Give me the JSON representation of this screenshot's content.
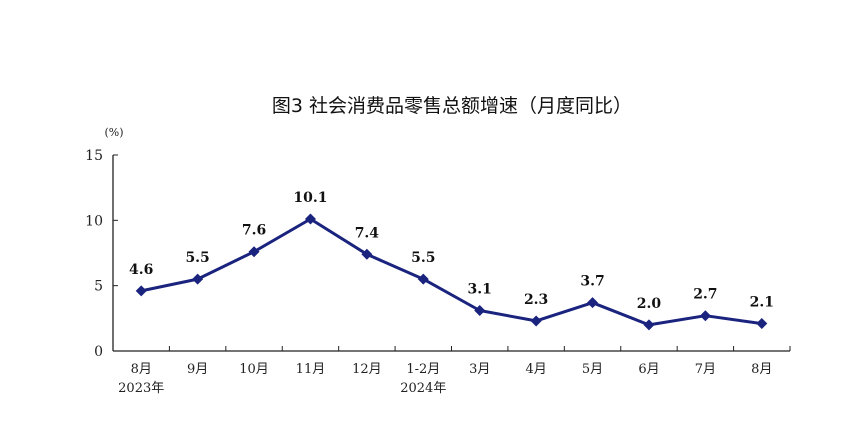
{
  "chart_data": {
    "type": "line",
    "title": "图3   社会消费品零售总额增速（月度同比）",
    "unit_label": "(%)",
    "categories": [
      "8月",
      "9月",
      "10月",
      "11月",
      "12月",
      "1-2月",
      "3月",
      "4月",
      "5月",
      "6月",
      "7月",
      "8月"
    ],
    "year_labels": [
      {
        "category_index": 0,
        "text": "2023年"
      },
      {
        "category_index": 5,
        "text": "2024年"
      }
    ],
    "values": [
      4.6,
      5.5,
      7.6,
      10.1,
      7.4,
      5.5,
      3.1,
      2.3,
      3.7,
      2.0,
      2.7,
      2.1
    ],
    "data_labels": [
      "4.6",
      "5.5",
      "7.6",
      "10.1",
      "7.4",
      "5.5",
      "3.1",
      "2.3",
      "3.7",
      "2.0",
      "2.7",
      "2.1"
    ],
    "yticks": [
      "0",
      "5",
      "10",
      "15"
    ],
    "ylim": [
      0,
      15
    ],
    "grid": false,
    "legend": "none",
    "line_color": "#1a237e",
    "marker": "diamond"
  }
}
